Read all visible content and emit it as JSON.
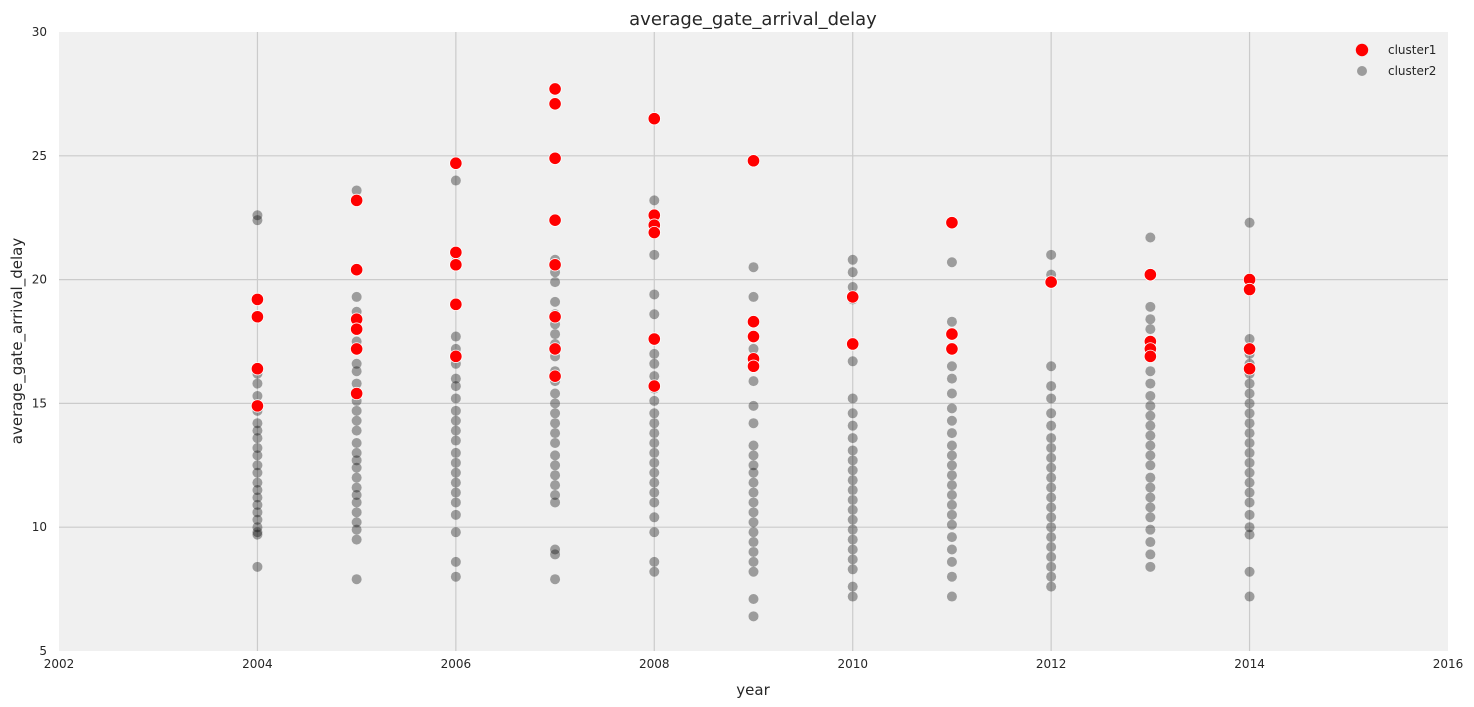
{
  "chart_data": {
    "type": "scatter",
    "title": "average_gate_arrival_delay",
    "xlabel": "year",
    "ylabel": "average_gate_arrival_delay",
    "xlim": [
      2002,
      2016
    ],
    "ylim": [
      5,
      30
    ],
    "xticks": [
      2002,
      2004,
      2006,
      2008,
      2010,
      2012,
      2014,
      2016
    ],
    "yticks": [
      5,
      10,
      15,
      20,
      25,
      30
    ],
    "grid": true,
    "legend": "top-right",
    "series": [
      {
        "name": "cluster1",
        "color": "#ff0000",
        "points": [
          [
            2004,
            19.2
          ],
          [
            2004,
            18.5
          ],
          [
            2004,
            16.4
          ],
          [
            2004,
            14.9
          ],
          [
            2005,
            23.2
          ],
          [
            2005,
            20.4
          ],
          [
            2005,
            18.4
          ],
          [
            2005,
            18.0
          ],
          [
            2005,
            17.2
          ],
          [
            2005,
            15.4
          ],
          [
            2006,
            24.7
          ],
          [
            2006,
            21.1
          ],
          [
            2006,
            20.6
          ],
          [
            2006,
            19.0
          ],
          [
            2006,
            16.9
          ],
          [
            2007,
            27.7
          ],
          [
            2007,
            27.1
          ],
          [
            2007,
            24.9
          ],
          [
            2007,
            22.4
          ],
          [
            2007,
            20.6
          ],
          [
            2007,
            18.5
          ],
          [
            2007,
            17.2
          ],
          [
            2007,
            16.1
          ],
          [
            2008,
            26.5
          ],
          [
            2008,
            22.6
          ],
          [
            2008,
            22.2
          ],
          [
            2008,
            21.9
          ],
          [
            2008,
            17.6
          ],
          [
            2008,
            15.7
          ],
          [
            2009,
            24.8
          ],
          [
            2009,
            18.3
          ],
          [
            2009,
            17.7
          ],
          [
            2009,
            16.8
          ],
          [
            2009,
            16.5
          ],
          [
            2010,
            19.3
          ],
          [
            2010,
            17.4
          ],
          [
            2011,
            22.3
          ],
          [
            2011,
            17.8
          ],
          [
            2011,
            17.2
          ],
          [
            2012,
            19.9
          ],
          [
            2013,
            20.2
          ],
          [
            2013,
            17.5
          ],
          [
            2013,
            17.2
          ],
          [
            2013,
            16.9
          ],
          [
            2014,
            20.0
          ],
          [
            2014,
            19.6
          ],
          [
            2014,
            17.2
          ],
          [
            2014,
            16.4
          ]
        ]
      },
      {
        "name": "cluster2",
        "color": "#000000",
        "points": [
          [
            2004,
            22.6
          ],
          [
            2004,
            22.4
          ],
          [
            2004,
            18.5
          ],
          [
            2004,
            16.2
          ],
          [
            2004,
            15.8
          ],
          [
            2004,
            15.3
          ],
          [
            2004,
            14.7
          ],
          [
            2004,
            14.2
          ],
          [
            2004,
            13.9
          ],
          [
            2004,
            13.6
          ],
          [
            2004,
            13.2
          ],
          [
            2004,
            12.9
          ],
          [
            2004,
            12.5
          ],
          [
            2004,
            12.2
          ],
          [
            2004,
            11.8
          ],
          [
            2004,
            11.5
          ],
          [
            2004,
            11.2
          ],
          [
            2004,
            10.9
          ],
          [
            2004,
            10.6
          ],
          [
            2004,
            10.3
          ],
          [
            2004,
            10.0
          ],
          [
            2004,
            9.8
          ],
          [
            2004,
            9.7
          ],
          [
            2004,
            8.4
          ],
          [
            2005,
            23.6
          ],
          [
            2005,
            23.2
          ],
          [
            2005,
            19.3
          ],
          [
            2005,
            18.7
          ],
          [
            2005,
            17.5
          ],
          [
            2005,
            16.6
          ],
          [
            2005,
            16.3
          ],
          [
            2005,
            15.8
          ],
          [
            2005,
            15.1
          ],
          [
            2005,
            14.7
          ],
          [
            2005,
            14.3
          ],
          [
            2005,
            13.9
          ],
          [
            2005,
            13.4
          ],
          [
            2005,
            13.0
          ],
          [
            2005,
            12.7
          ],
          [
            2005,
            12.4
          ],
          [
            2005,
            12.0
          ],
          [
            2005,
            11.6
          ],
          [
            2005,
            11.3
          ],
          [
            2005,
            11.0
          ],
          [
            2005,
            10.6
          ],
          [
            2005,
            10.2
          ],
          [
            2005,
            9.9
          ],
          [
            2005,
            9.5
          ],
          [
            2005,
            7.9
          ],
          [
            2006,
            24.0
          ],
          [
            2006,
            21.0
          ],
          [
            2006,
            20.7
          ],
          [
            2006,
            17.7
          ],
          [
            2006,
            17.2
          ],
          [
            2006,
            16.6
          ],
          [
            2006,
            16.0
          ],
          [
            2006,
            15.7
          ],
          [
            2006,
            15.2
          ],
          [
            2006,
            14.7
          ],
          [
            2006,
            14.3
          ],
          [
            2006,
            13.9
          ],
          [
            2006,
            13.5
          ],
          [
            2006,
            13.0
          ],
          [
            2006,
            12.6
          ],
          [
            2006,
            12.2
          ],
          [
            2006,
            11.8
          ],
          [
            2006,
            11.4
          ],
          [
            2006,
            11.0
          ],
          [
            2006,
            10.5
          ],
          [
            2006,
            9.8
          ],
          [
            2006,
            8.6
          ],
          [
            2006,
            8.0
          ],
          [
            2007,
            20.8
          ],
          [
            2007,
            20.3
          ],
          [
            2007,
            19.9
          ],
          [
            2007,
            19.1
          ],
          [
            2007,
            18.6
          ],
          [
            2007,
            18.2
          ],
          [
            2007,
            17.8
          ],
          [
            2007,
            17.4
          ],
          [
            2007,
            16.9
          ],
          [
            2007,
            16.3
          ],
          [
            2007,
            15.9
          ],
          [
            2007,
            15.4
          ],
          [
            2007,
            15.0
          ],
          [
            2007,
            14.6
          ],
          [
            2007,
            14.2
          ],
          [
            2007,
            13.8
          ],
          [
            2007,
            13.4
          ],
          [
            2007,
            12.9
          ],
          [
            2007,
            12.5
          ],
          [
            2007,
            12.1
          ],
          [
            2007,
            11.7
          ],
          [
            2007,
            11.3
          ],
          [
            2007,
            11.0
          ],
          [
            2007,
            9.1
          ],
          [
            2007,
            8.9
          ],
          [
            2007,
            7.9
          ],
          [
            2008,
            23.2
          ],
          [
            2008,
            22.4
          ],
          [
            2008,
            21.0
          ],
          [
            2008,
            19.4
          ],
          [
            2008,
            18.6
          ],
          [
            2008,
            17.0
          ],
          [
            2008,
            16.6
          ],
          [
            2008,
            16.1
          ],
          [
            2008,
            15.6
          ],
          [
            2008,
            15.1
          ],
          [
            2008,
            14.6
          ],
          [
            2008,
            14.2
          ],
          [
            2008,
            13.8
          ],
          [
            2008,
            13.4
          ],
          [
            2008,
            13.0
          ],
          [
            2008,
            12.6
          ],
          [
            2008,
            12.2
          ],
          [
            2008,
            11.8
          ],
          [
            2008,
            11.4
          ],
          [
            2008,
            11.0
          ],
          [
            2008,
            10.4
          ],
          [
            2008,
            9.8
          ],
          [
            2008,
            8.6
          ],
          [
            2008,
            8.2
          ],
          [
            2009,
            20.5
          ],
          [
            2009,
            19.3
          ],
          [
            2009,
            17.2
          ],
          [
            2009,
            16.6
          ],
          [
            2009,
            15.9
          ],
          [
            2009,
            14.9
          ],
          [
            2009,
            14.2
          ],
          [
            2009,
            13.3
          ],
          [
            2009,
            12.9
          ],
          [
            2009,
            12.5
          ],
          [
            2009,
            12.2
          ],
          [
            2009,
            11.8
          ],
          [
            2009,
            11.4
          ],
          [
            2009,
            11.0
          ],
          [
            2009,
            10.6
          ],
          [
            2009,
            10.2
          ],
          [
            2009,
            9.8
          ],
          [
            2009,
            9.4
          ],
          [
            2009,
            9.0
          ],
          [
            2009,
            8.6
          ],
          [
            2009,
            8.2
          ],
          [
            2009,
            7.1
          ],
          [
            2009,
            6.4
          ],
          [
            2010,
            20.8
          ],
          [
            2010,
            20.3
          ],
          [
            2010,
            19.7
          ],
          [
            2010,
            19.2
          ],
          [
            2010,
            16.7
          ],
          [
            2010,
            15.2
          ],
          [
            2010,
            14.6
          ],
          [
            2010,
            14.1
          ],
          [
            2010,
            13.6
          ],
          [
            2010,
            13.1
          ],
          [
            2010,
            12.7
          ],
          [
            2010,
            12.3
          ],
          [
            2010,
            11.9
          ],
          [
            2010,
            11.5
          ],
          [
            2010,
            11.1
          ],
          [
            2010,
            10.7
          ],
          [
            2010,
            10.3
          ],
          [
            2010,
            9.9
          ],
          [
            2010,
            9.5
          ],
          [
            2010,
            9.1
          ],
          [
            2010,
            8.7
          ],
          [
            2010,
            8.3
          ],
          [
            2010,
            7.6
          ],
          [
            2010,
            7.2
          ],
          [
            2011,
            22.3
          ],
          [
            2011,
            20.7
          ],
          [
            2011,
            18.3
          ],
          [
            2011,
            16.5
          ],
          [
            2011,
            16.0
          ],
          [
            2011,
            15.4
          ],
          [
            2011,
            14.8
          ],
          [
            2011,
            14.3
          ],
          [
            2011,
            13.8
          ],
          [
            2011,
            13.3
          ],
          [
            2011,
            12.9
          ],
          [
            2011,
            12.5
          ],
          [
            2011,
            12.1
          ],
          [
            2011,
            11.7
          ],
          [
            2011,
            11.3
          ],
          [
            2011,
            10.9
          ],
          [
            2011,
            10.5
          ],
          [
            2011,
            10.1
          ],
          [
            2011,
            9.6
          ],
          [
            2011,
            9.1
          ],
          [
            2011,
            8.6
          ],
          [
            2011,
            8.0
          ],
          [
            2011,
            7.2
          ],
          [
            2012,
            21.0
          ],
          [
            2012,
            20.2
          ],
          [
            2012,
            16.5
          ],
          [
            2012,
            15.7
          ],
          [
            2012,
            15.2
          ],
          [
            2012,
            14.6
          ],
          [
            2012,
            14.1
          ],
          [
            2012,
            13.6
          ],
          [
            2012,
            13.2
          ],
          [
            2012,
            12.8
          ],
          [
            2012,
            12.4
          ],
          [
            2012,
            12.0
          ],
          [
            2012,
            11.6
          ],
          [
            2012,
            11.2
          ],
          [
            2012,
            10.8
          ],
          [
            2012,
            10.4
          ],
          [
            2012,
            10.0
          ],
          [
            2012,
            9.6
          ],
          [
            2012,
            9.2
          ],
          [
            2012,
            8.8
          ],
          [
            2012,
            8.4
          ],
          [
            2012,
            8.0
          ],
          [
            2012,
            7.6
          ],
          [
            2013,
            21.7
          ],
          [
            2013,
            18.9
          ],
          [
            2013,
            18.4
          ],
          [
            2013,
            18.0
          ],
          [
            2013,
            16.3
          ],
          [
            2013,
            15.8
          ],
          [
            2013,
            15.3
          ],
          [
            2013,
            14.9
          ],
          [
            2013,
            14.5
          ],
          [
            2013,
            14.1
          ],
          [
            2013,
            13.7
          ],
          [
            2013,
            13.3
          ],
          [
            2013,
            12.9
          ],
          [
            2013,
            12.5
          ],
          [
            2013,
            12.0
          ],
          [
            2013,
            11.6
          ],
          [
            2013,
            11.2
          ],
          [
            2013,
            10.8
          ],
          [
            2013,
            10.4
          ],
          [
            2013,
            9.9
          ],
          [
            2013,
            9.4
          ],
          [
            2013,
            8.9
          ],
          [
            2013,
            8.4
          ],
          [
            2014,
            22.3
          ],
          [
            2014,
            17.6
          ],
          [
            2014,
            17.0
          ],
          [
            2014,
            16.6
          ],
          [
            2014,
            16.2
          ],
          [
            2014,
            15.8
          ],
          [
            2014,
            15.4
          ],
          [
            2014,
            15.0
          ],
          [
            2014,
            14.6
          ],
          [
            2014,
            14.2
          ],
          [
            2014,
            13.8
          ],
          [
            2014,
            13.4
          ],
          [
            2014,
            13.0
          ],
          [
            2014,
            12.6
          ],
          [
            2014,
            12.2
          ],
          [
            2014,
            11.8
          ],
          [
            2014,
            11.4
          ],
          [
            2014,
            11.0
          ],
          [
            2014,
            10.5
          ],
          [
            2014,
            10.0
          ],
          [
            2014,
            9.7
          ],
          [
            2014,
            8.2
          ],
          [
            2014,
            7.2
          ]
        ]
      }
    ]
  }
}
